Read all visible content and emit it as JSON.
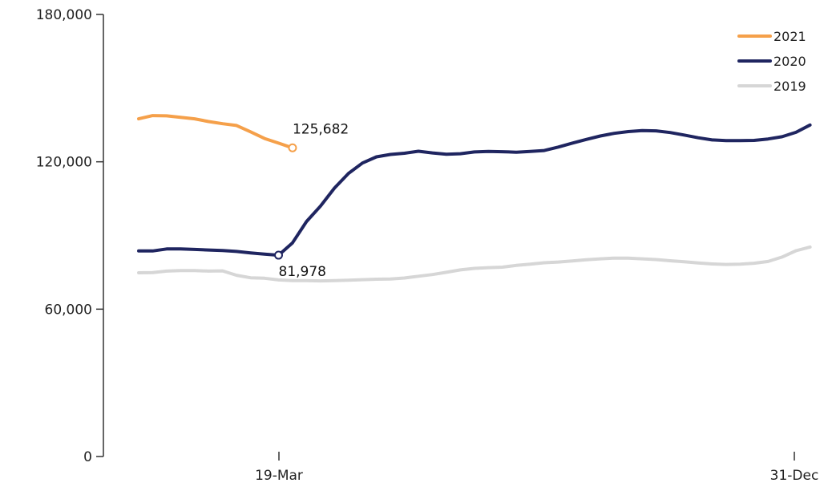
{
  "chart_data": {
    "type": "line",
    "title": "",
    "xlabel": "",
    "ylabel": "",
    "x_ticks": [
      "19-Mar",
      "31-Dec"
    ],
    "y_ticks": [
      "0",
      "60,000",
      "120,000",
      "180,000"
    ],
    "ylim": [
      0,
      180000
    ],
    "grid": false,
    "legend_position": "top-right",
    "series": [
      {
        "name": "2021",
        "color": "#f5a04a",
        "values": [
          137500,
          138800,
          138700,
          138100,
          137500,
          136400,
          135500,
          134800,
          132200,
          129500,
          127600,
          125682
        ]
      },
      {
        "name": "2020",
        "color": "#1f2560",
        "values": [
          83700,
          83700,
          84500,
          84500,
          84300,
          84100,
          83900,
          83500,
          82900,
          82400,
          81978,
          87000,
          95700,
          102000,
          109300,
          115300,
          119500,
          122000,
          123000,
          123500,
          124300,
          123600,
          123100,
          123300,
          124000,
          124200,
          124100,
          123900,
          124200,
          124600,
          126000,
          127600,
          129100,
          130500,
          131600,
          132300,
          132700,
          132600,
          131900,
          130900,
          129800,
          128900,
          128600,
          128600,
          128700,
          129300,
          130200,
          132000,
          135000
        ]
      },
      {
        "name": "2019",
        "color": "#d6d6d6",
        "values": [
          74800,
          74900,
          75500,
          75700,
          75700,
          75500,
          75600,
          73800,
          72800,
          72600,
          71900,
          71600,
          71600,
          71500,
          71600,
          71800,
          72000,
          72200,
          72300,
          72700,
          73400,
          74100,
          75000,
          76000,
          76600,
          76900,
          77100,
          77800,
          78300,
          78900,
          79200,
          79600,
          80100,
          80500,
          80800,
          80800,
          80500,
          80200,
          79700,
          79300,
          78800,
          78400,
          78200,
          78300,
          78700,
          79400,
          81200,
          83800,
          85300
        ]
      }
    ],
    "annotations": [
      {
        "label": "125,682",
        "series": "2021",
        "index": 11
      },
      {
        "label": "81,978",
        "series": "2020",
        "index": 10
      }
    ]
  }
}
